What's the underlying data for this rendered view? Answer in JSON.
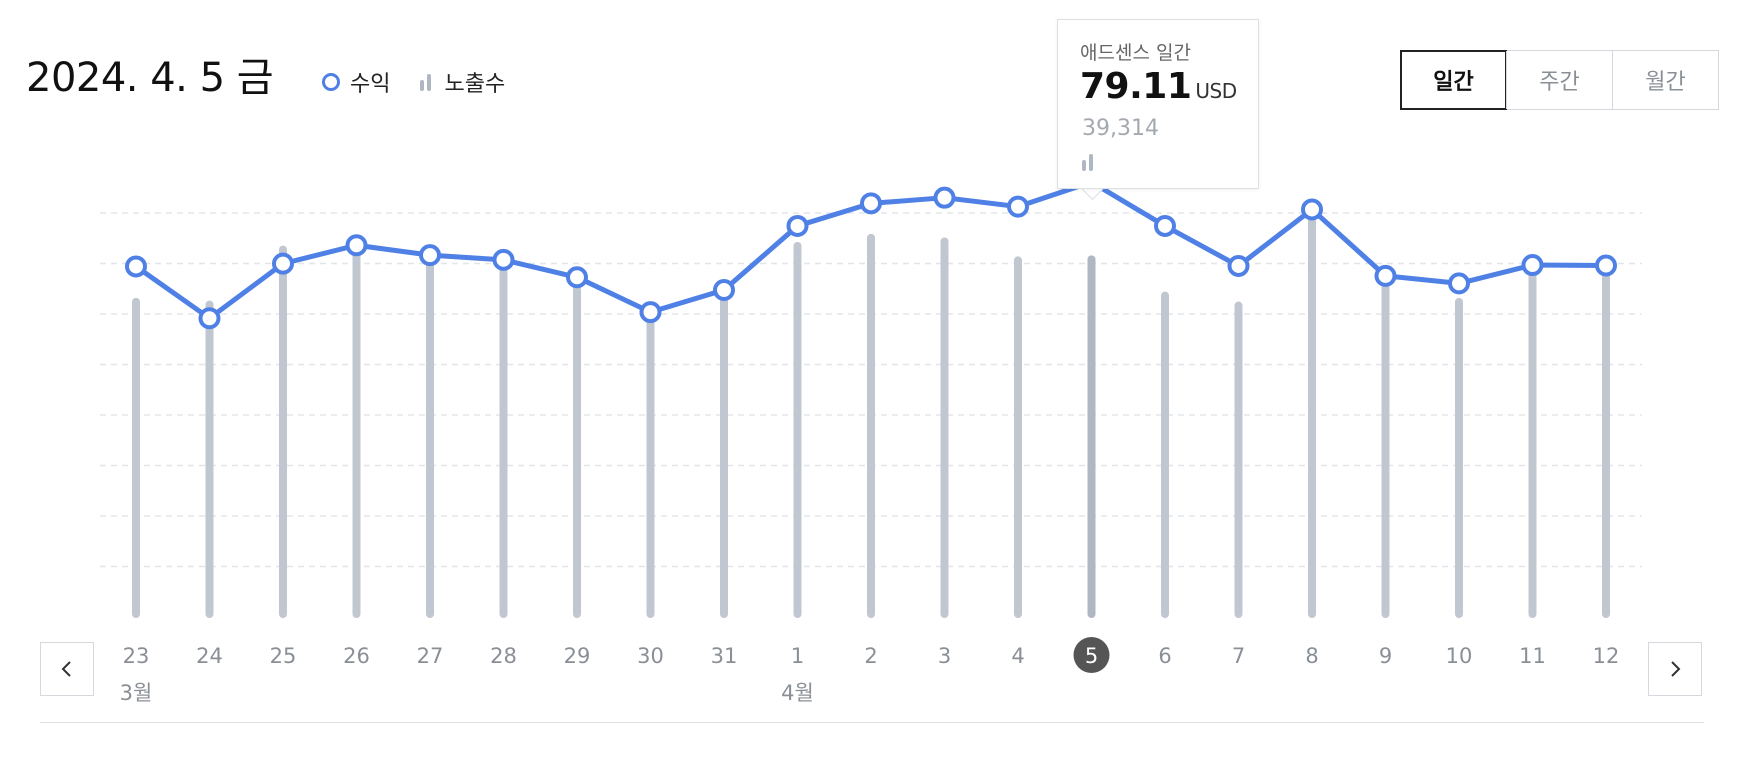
{
  "header": {
    "date": "2024. 4. 5 금",
    "legend": {
      "revenue_label": "수익",
      "impressions_label": "노출수"
    }
  },
  "period_tabs": [
    {
      "label": "일간",
      "active": true
    },
    {
      "label": "주간",
      "active": false
    },
    {
      "label": "월간",
      "active": false
    }
  ],
  "tooltip": {
    "title": "애드센스 일간",
    "value": "79.11",
    "unit": "USD",
    "impressions": "39,314"
  },
  "nav": {
    "prev_icon": "chevron-left-icon",
    "next_icon": "chevron-right-icon"
  },
  "colors": {
    "revenue_line": "#4f80e6",
    "impression_bar": "#c0c7d0",
    "selected_bar": "#aeb7c2",
    "selected_day_badge": "#555555"
  },
  "chart_data": {
    "type": "bar+line",
    "x": [
      "23",
      "24",
      "25",
      "26",
      "27",
      "28",
      "29",
      "30",
      "31",
      "1",
      "2",
      "3",
      "4",
      "5",
      "6",
      "7",
      "8",
      "9",
      "10",
      "11",
      "12"
    ],
    "month_labels": [
      {
        "index": 0,
        "label": "3월"
      },
      {
        "index": 9,
        "label": "4월"
      }
    ],
    "selected_index": 13,
    "series": [
      {
        "name": "수익",
        "kind": "line",
        "values": [
          61.2,
          50.2,
          61.8,
          65.7,
          63.6,
          62.6,
          58.9,
          51.5,
          56.2,
          69.8,
          74.6,
          75.8,
          73.9,
          79.11,
          69.8,
          61.3,
          73.3,
          59.2,
          57.6,
          61.5,
          61.4
        ]
      },
      {
        "name": "노출수",
        "kind": "bar",
        "values": [
          34600,
          34300,
          40400,
          39900,
          39100,
          39800,
          36700,
          34200,
          35600,
          40800,
          41700,
          41300,
          39200,
          39314,
          35300,
          34200,
          43500,
          37000,
          34600,
          37800,
          39000
        ]
      }
    ],
    "grid": true,
    "legend_position": "top-left"
  }
}
